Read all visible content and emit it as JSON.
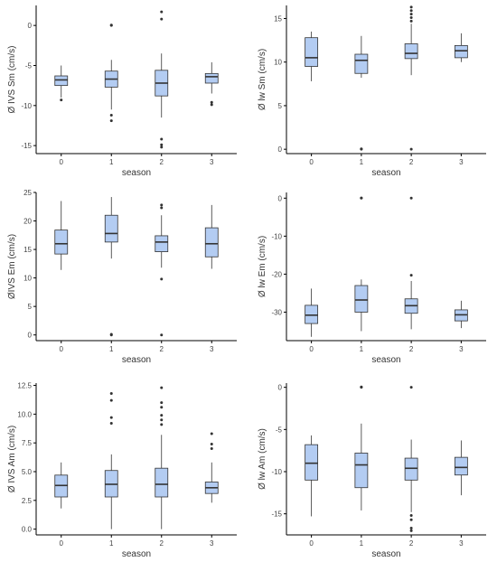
{
  "style": {
    "box_fill": "#b3ccf2",
    "box_stroke": "#333333",
    "axis_color": "#000000",
    "point_color": "#333333"
  },
  "chart_data": [
    {
      "type": "box",
      "xlabel": "season",
      "ylabel": "Ø IVS Sm (cm/s)",
      "categories": [
        "0",
        "1",
        "2",
        "3"
      ],
      "ylim": [
        -16,
        2.5
      ],
      "yticks": [
        -15,
        -10,
        -5,
        0
      ],
      "boxes": [
        {
          "whislo": -9.0,
          "q1": -7.5,
          "med": -6.8,
          "q3": -6.3,
          "whishi": -5.0,
          "fliers": [
            -9.3
          ]
        },
        {
          "whislo": -10.5,
          "q1": -7.7,
          "med": -6.7,
          "q3": -5.7,
          "whishi": -4.3,
          "fliers": [
            0.0,
            0.05,
            -11.2,
            -11.9
          ]
        },
        {
          "whislo": -11.5,
          "q1": -8.8,
          "med": -7.2,
          "q3": -5.6,
          "whishi": -3.5,
          "fliers": [
            1.7,
            0.8,
            -14.2,
            -14.9,
            -15.2
          ]
        },
        {
          "whislo": -8.5,
          "q1": -7.2,
          "med": -6.4,
          "q3": -6.0,
          "whishi": -4.6,
          "fliers": [
            -9.6,
            -9.9
          ]
        }
      ]
    },
    {
      "type": "box",
      "xlabel": "season",
      "ylabel": "Ø lw Sm (cm/s)",
      "categories": [
        "0",
        "1",
        "2",
        "3"
      ],
      "ylim": [
        -0.5,
        16.5
      ],
      "yticks": [
        0,
        5,
        10,
        15
      ],
      "boxes": [
        {
          "whislo": 7.8,
          "q1": 9.5,
          "med": 10.5,
          "q3": 12.8,
          "whishi": 13.5,
          "fliers": []
        },
        {
          "whislo": 8.2,
          "q1": 8.7,
          "med": 10.2,
          "q3": 10.9,
          "whishi": 13.0,
          "fliers": [
            0.0,
            0.05
          ]
        },
        {
          "whislo": 8.5,
          "q1": 10.4,
          "med": 11.0,
          "q3": 12.1,
          "whishi": 14.4,
          "fliers": [
            16.3,
            15.9,
            15.5,
            15.1,
            14.7,
            0.0
          ]
        },
        {
          "whislo": 10.0,
          "q1": 10.5,
          "med": 11.3,
          "q3": 11.9,
          "whishi": 13.3,
          "fliers": []
        }
      ]
    },
    {
      "type": "box",
      "xlabel": "season",
      "ylabel": "ØIVS Em (cm/s)",
      "categories": [
        "0",
        "1",
        "2",
        "3"
      ],
      "ylim": [
        -1,
        25
      ],
      "yticks": [
        0,
        5,
        10,
        15,
        20,
        25
      ],
      "boxes": [
        {
          "whislo": 11.4,
          "q1": 14.2,
          "med": 16.0,
          "q3": 18.4,
          "whishi": 23.5,
          "fliers": []
        },
        {
          "whislo": 13.4,
          "q1": 16.3,
          "med": 17.8,
          "q3": 21.0,
          "whishi": 24.2,
          "fliers": [
            0.0,
            0.1
          ]
        },
        {
          "whislo": 11.8,
          "q1": 14.6,
          "med": 16.3,
          "q3": 17.4,
          "whishi": 21.0,
          "fliers": [
            22.8,
            22.3,
            9.8,
            0.0
          ]
        },
        {
          "whislo": 11.6,
          "q1": 13.7,
          "med": 16.0,
          "q3": 18.8,
          "whishi": 22.8,
          "fliers": []
        }
      ]
    },
    {
      "type": "box",
      "xlabel": "season",
      "ylabel": "Ø lw Em (cm/s)",
      "categories": [
        "0",
        "1",
        "2",
        "3"
      ],
      "ylim": [
        -37.5,
        1.5
      ],
      "yticks": [
        -30,
        -20,
        -10,
        0
      ],
      "boxes": [
        {
          "whislo": -36.5,
          "q1": -33.0,
          "med": -30.8,
          "q3": -28.2,
          "whishi": -23.8,
          "fliers": []
        },
        {
          "whislo": -35.0,
          "q1": -30.0,
          "med": -26.8,
          "q3": -23.0,
          "whishi": -21.4,
          "fliers": [
            0.0,
            0.05
          ]
        },
        {
          "whislo": -34.5,
          "q1": -30.3,
          "med": -28.3,
          "q3": -26.5,
          "whishi": -21.8,
          "fliers": [
            -20.3,
            0.0
          ]
        },
        {
          "whislo": -34.2,
          "q1": -32.3,
          "med": -30.7,
          "q3": -29.4,
          "whishi": -27.0,
          "fliers": []
        }
      ]
    },
    {
      "type": "box",
      "xlabel": "season",
      "ylabel": "Ø IVS Am (cm/s)",
      "categories": [
        "0",
        "1",
        "2",
        "3"
      ],
      "ylim": [
        -0.5,
        12.7
      ],
      "yticks": [
        0.0,
        2.5,
        5.0,
        7.5,
        10.0,
        12.5
      ],
      "boxes": [
        {
          "whislo": 1.8,
          "q1": 2.8,
          "med": 3.8,
          "q3": 4.7,
          "whishi": 5.8,
          "fliers": []
        },
        {
          "whislo": 0.0,
          "q1": 2.8,
          "med": 3.9,
          "q3": 5.1,
          "whishi": 6.5,
          "fliers": [
            11.8,
            11.2,
            9.7,
            9.2
          ]
        },
        {
          "whislo": 0.0,
          "q1": 2.8,
          "med": 3.9,
          "q3": 5.3,
          "whishi": 8.2,
          "fliers": [
            12.3,
            11.0,
            10.6,
            9.9,
            9.5,
            9.1
          ]
        },
        {
          "whislo": 2.3,
          "q1": 3.1,
          "med": 3.6,
          "q3": 4.1,
          "whishi": 5.8,
          "fliers": [
            8.3,
            7.4,
            7.0
          ]
        }
      ]
    },
    {
      "type": "box",
      "xlabel": "season",
      "ylabel": "Ø lw Am (cm/s)",
      "categories": [
        "0",
        "1",
        "2",
        "3"
      ],
      "ylim": [
        -17.5,
        0.5
      ],
      "yticks": [
        -15,
        -10,
        -5,
        0
      ],
      "boxes": [
        {
          "whislo": -15.3,
          "q1": -11.0,
          "med": -9.0,
          "q3": -6.8,
          "whishi": -5.7,
          "fliers": []
        },
        {
          "whislo": -14.6,
          "q1": -11.9,
          "med": -9.2,
          "q3": -7.8,
          "whishi": -4.3,
          "fliers": [
            0.0,
            0.05
          ]
        },
        {
          "whislo": -14.8,
          "q1": -11.0,
          "med": -9.6,
          "q3": -8.4,
          "whishi": -6.2,
          "fliers": [
            0.0,
            -15.2,
            -15.7,
            -16.7,
            -17.0
          ]
        },
        {
          "whislo": -12.8,
          "q1": -10.4,
          "med": -9.5,
          "q3": -8.3,
          "whishi": -6.3,
          "fliers": []
        }
      ]
    }
  ]
}
